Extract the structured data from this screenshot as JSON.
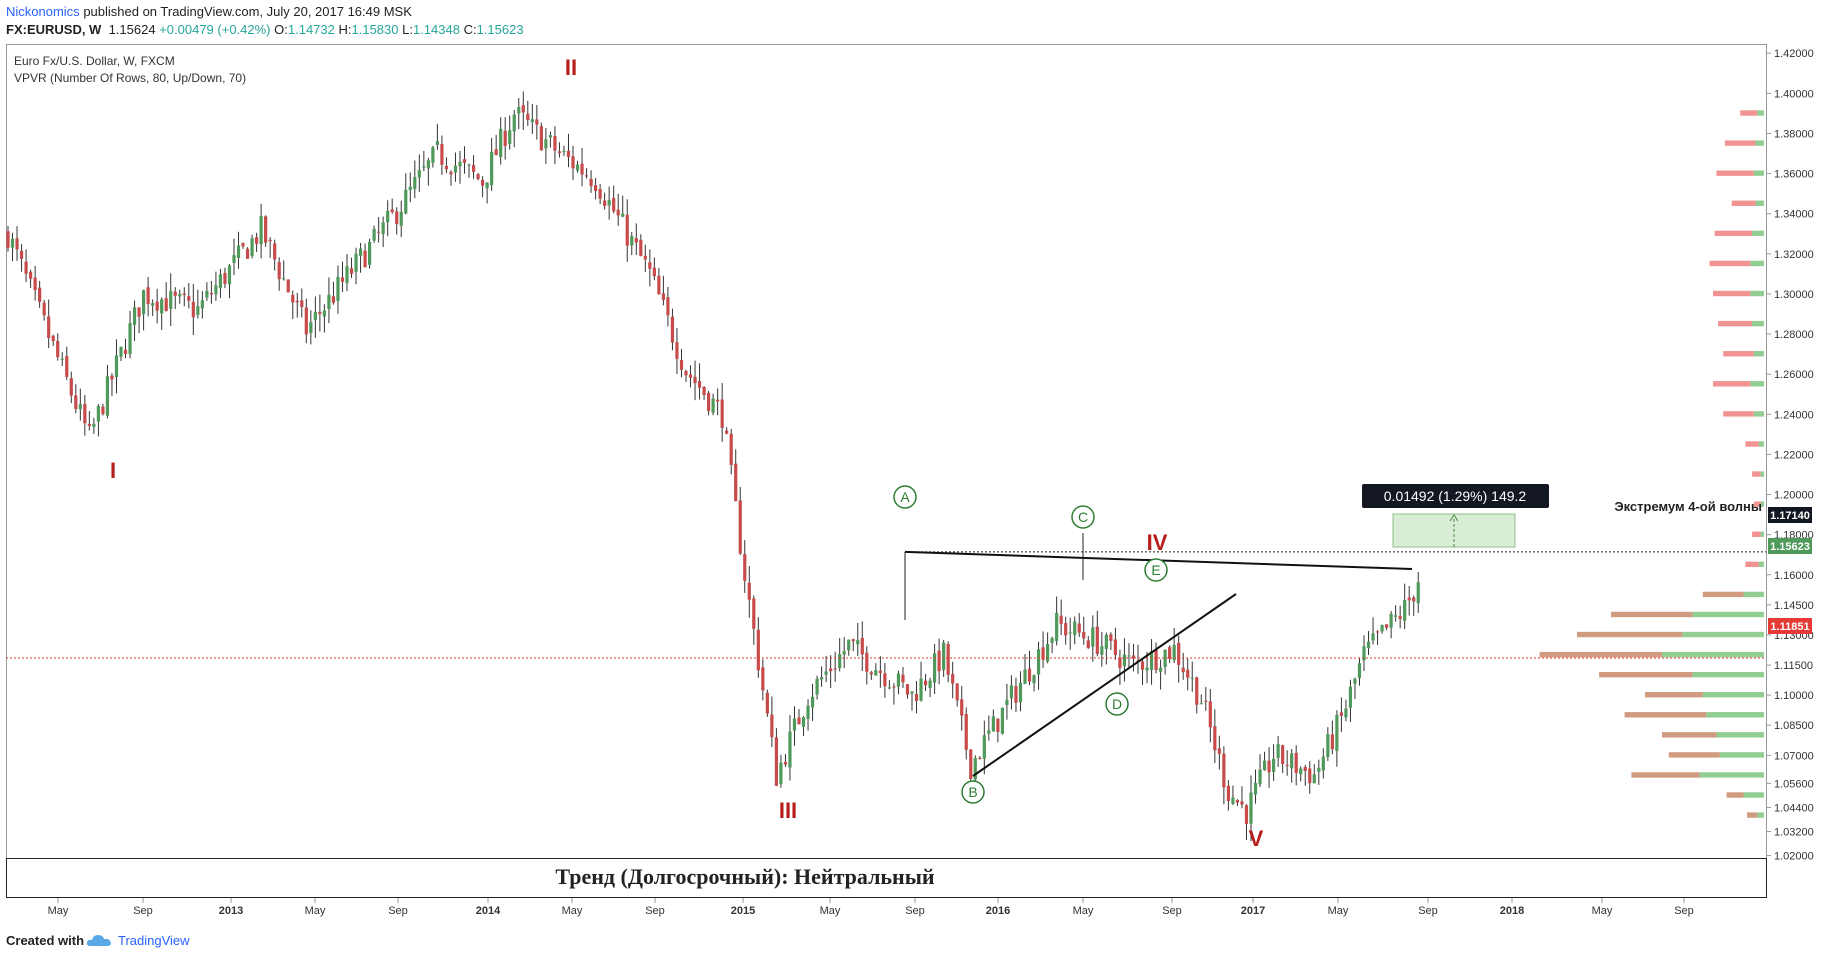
{
  "header": {
    "author": "Nickonomics",
    "published": "published on TradingView.com, July 20, 2017 16:49 MSK",
    "symbol": "FX:EURUSD, W",
    "last": "1.15624",
    "change": "+0.00479 (+0.42%)",
    "o_label": "O:",
    "o_val": "1.14732",
    "h_label": "H:",
    "h_val": "1.15830",
    "l_label": "L:",
    "l_val": "1.14348",
    "c_label": "C:",
    "c_val": "1.15623"
  },
  "legend": {
    "line1": "Euro Fx/U.S. Dollar, W, FXCM",
    "line2": "VPVR (Number Of Rows, 80, Up/Down, 70)"
  },
  "banner": "Тренд (Долгосрочный): Нейтральный",
  "measure_label": "0.01492 (1.29%) 149.2",
  "extreme_label": "Экстремум 4-ой волны",
  "price_labels": {
    "extreme": "1.17140",
    "last": "1.15623",
    "red_line": "1.11851"
  },
  "wave_labels": [
    "I",
    "II",
    "III",
    "IV",
    "V"
  ],
  "circle_labels": [
    "A",
    "B",
    "C",
    "D",
    "E"
  ],
  "footer": {
    "created": "Created with",
    "brand": "TradingView"
  },
  "colors": {
    "up": "#4f9a5a",
    "down": "#c84a4a",
    "wave_label": "#b71c1c",
    "circle": "#2e7d32",
    "vp_up": "#7fc47f",
    "vp_down": "#f08080",
    "accent": "#2962ff"
  },
  "chart_data": {
    "type": "candlestick",
    "title": "Euro Fx/U.S. Dollar, W, FXCM",
    "timeframe": "Weekly",
    "x_tick_labels": [
      "May",
      "Sep",
      "2013",
      "May",
      "Sep",
      "2014",
      "May",
      "Sep",
      "2015",
      "May",
      "Sep",
      "2016",
      "May",
      "Sep",
      "2017",
      "May",
      "Sep",
      "2018",
      "May",
      "Sep"
    ],
    "y_tick_labels": [
      "1.42000",
      "1.40000",
      "1.38000",
      "1.36000",
      "1.34000",
      "1.32000",
      "1.30000",
      "1.28000",
      "1.26000",
      "1.24000",
      "1.22000",
      "1.20000",
      "1.18000",
      "1.16000",
      "1.14500",
      "1.13000",
      "1.11500",
      "1.10000",
      "1.08500",
      "1.07000",
      "1.05600",
      "1.04400",
      "1.03200",
      "1.02000"
    ],
    "ylim": [
      1.02,
      1.42
    ],
    "waypoints": [
      {
        "t": 0,
        "p": 1.33
      },
      {
        "t": 12,
        "p": 1.262
      },
      {
        "t": 18,
        "p": 1.228
      },
      {
        "t": 30,
        "p": 1.3
      },
      {
        "t": 42,
        "p": 1.292
      },
      {
        "t": 56,
        "p": 1.332
      },
      {
        "t": 66,
        "p": 1.282
      },
      {
        "t": 85,
        "p": 1.338
      },
      {
        "t": 95,
        "p": 1.37
      },
      {
        "t": 105,
        "p": 1.356
      },
      {
        "t": 112,
        "p": 1.39
      },
      {
        "t": 122,
        "p": 1.37
      },
      {
        "t": 130,
        "p": 1.357
      },
      {
        "t": 142,
        "p": 1.31
      },
      {
        "t": 150,
        "p": 1.262
      },
      {
        "t": 158,
        "p": 1.24
      },
      {
        "t": 163,
        "p": 1.16
      },
      {
        "t": 170,
        "p": 1.06
      },
      {
        "t": 177,
        "p": 1.1
      },
      {
        "t": 186,
        "p": 1.125
      },
      {
        "t": 200,
        "p": 1.1
      },
      {
        "t": 207,
        "p": 1.12
      },
      {
        "t": 213,
        "p": 1.065
      },
      {
        "t": 221,
        "p": 1.095
      },
      {
        "t": 232,
        "p": 1.135
      },
      {
        "t": 240,
        "p": 1.128
      },
      {
        "t": 249,
        "p": 1.115
      },
      {
        "t": 258,
        "p": 1.123
      },
      {
        "t": 264,
        "p": 1.098
      },
      {
        "t": 270,
        "p": 1.052
      },
      {
        "t": 274,
        "p": 1.042
      },
      {
        "t": 280,
        "p": 1.07
      },
      {
        "t": 289,
        "p": 1.06
      },
      {
        "t": 295,
        "p": 1.088
      },
      {
        "t": 300,
        "p": 1.12
      },
      {
        "t": 309,
        "p": 1.143
      },
      {
        "t": 312,
        "p": 1.156
      }
    ],
    "levels": {
      "extreme_wave4": 1.1714,
      "last_close": 1.15623,
      "red_line": 1.11851
    },
    "annotations": [
      {
        "text": "I",
        "price": 1.215
      },
      {
        "text": "II",
        "price": 1.408
      },
      {
        "text": "III",
        "price": 1.035
      },
      {
        "text": "IV",
        "price": 1.158
      },
      {
        "text": "V",
        "price": 1.028
      }
    ],
    "volume_profile": [
      {
        "price": 1.39,
        "up": 4,
        "down": 10
      },
      {
        "price": 1.375,
        "up": 5,
        "down": 18
      },
      {
        "price": 1.36,
        "up": 6,
        "down": 22
      },
      {
        "price": 1.345,
        "up": 5,
        "down": 14
      },
      {
        "price": 1.33,
        "up": 7,
        "down": 22
      },
      {
        "price": 1.315,
        "up": 8,
        "down": 24
      },
      {
        "price": 1.3,
        "up": 8,
        "down": 22
      },
      {
        "price": 1.285,
        "up": 7,
        "down": 20
      },
      {
        "price": 1.27,
        "up": 6,
        "down": 18
      },
      {
        "price": 1.255,
        "up": 8,
        "down": 22
      },
      {
        "price": 1.24,
        "up": 6,
        "down": 18
      },
      {
        "price": 1.225,
        "up": 3,
        "down": 8
      },
      {
        "price": 1.21,
        "up": 2,
        "down": 5
      },
      {
        "price": 1.195,
        "up": 2,
        "down": 4
      },
      {
        "price": 1.18,
        "up": 2,
        "down": 5
      },
      {
        "price": 1.165,
        "up": 3,
        "down": 8
      },
      {
        "price": 1.15,
        "up": 12,
        "down": 24
      },
      {
        "price": 1.14,
        "up": 42,
        "down": 48
      },
      {
        "price": 1.13,
        "up": 48,
        "down": 62
      },
      {
        "price": 1.12,
        "up": 60,
        "down": 72
      },
      {
        "price": 1.11,
        "up": 42,
        "down": 55
      },
      {
        "price": 1.1,
        "up": 36,
        "down": 34
      },
      {
        "price": 1.09,
        "up": 34,
        "down": 48
      },
      {
        "price": 1.08,
        "up": 28,
        "down": 32
      },
      {
        "price": 1.07,
        "up": 26,
        "down": 30
      },
      {
        "price": 1.06,
        "up": 38,
        "down": 40
      },
      {
        "price": 1.05,
        "up": 12,
        "down": 10
      },
      {
        "price": 1.04,
        "up": 4,
        "down": 6
      }
    ]
  }
}
